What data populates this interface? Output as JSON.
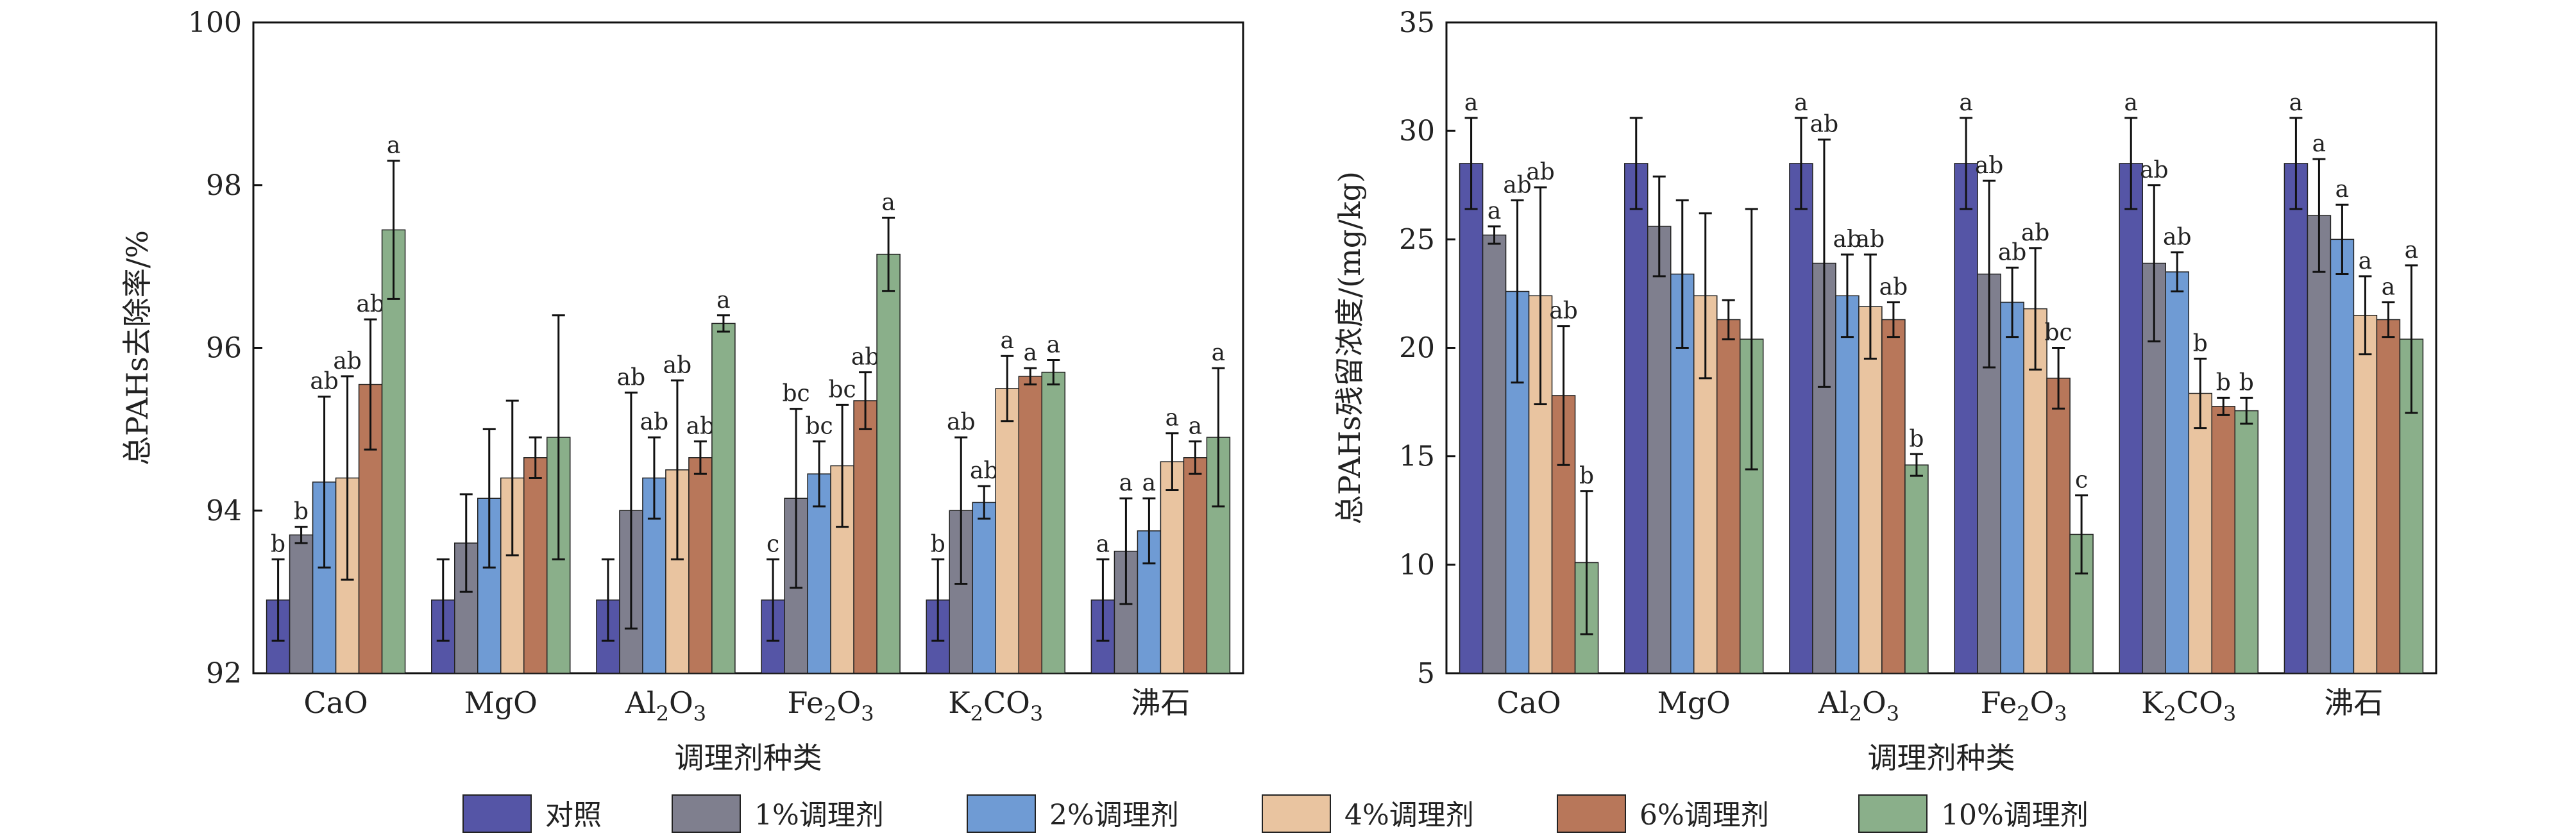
{
  "legend": {
    "series": [
      "对照",
      "1%调理剂",
      "2%调理剂",
      "4%调理剂",
      "6%调理剂",
      "10%调理剂"
    ],
    "colors": [
      "#5555a6",
      "#7f7f8e",
      "#6f9bd4",
      "#e9c4a0",
      "#b8775a",
      "#8aaf8a"
    ]
  },
  "chart_data": [
    {
      "type": "bar",
      "ylabel": "总PAHs去除率/%",
      "xlabel": "调理剂种类",
      "ylim": [
        92,
        100
      ],
      "yticks": [
        "92",
        "94",
        "96",
        "98",
        "100"
      ],
      "categories": [
        {
          "base": "CaO",
          "sub": []
        },
        {
          "base": "MgO",
          "sub": []
        },
        {
          "base": "Al",
          "sub": [
            "2",
            "O",
            "3"
          ]
        },
        {
          "base": "Fe",
          "sub": [
            "2",
            "O",
            "3"
          ]
        },
        {
          "base": "K",
          "sub": [
            "2",
            "CO",
            "3"
          ]
        },
        {
          "base": "沸石",
          "sub": []
        }
      ],
      "series": [
        {
          "name": "对照",
          "values": [
            92.9,
            92.9,
            92.9,
            92.9,
            92.9,
            92.9
          ],
          "errors": [
            0.5,
            0.5,
            0.5,
            0.5,
            0.5,
            0.5
          ],
          "letters": [
            "b",
            "",
            "",
            "c",
            "b",
            "a"
          ]
        },
        {
          "name": "1%调理剂",
          "values": [
            93.7,
            93.6,
            94.0,
            94.15,
            94.0,
            93.5
          ],
          "errors": [
            0.1,
            0.6,
            1.45,
            1.1,
            0.9,
            0.65
          ],
          "letters": [
            "b",
            "",
            "ab",
            "bc",
            "ab",
            "a"
          ]
        },
        {
          "name": "2%调理剂",
          "values": [
            94.35,
            94.15,
            94.4,
            94.45,
            94.1,
            93.75
          ],
          "errors": [
            1.05,
            0.85,
            0.5,
            0.4,
            0.2,
            0.4
          ],
          "letters": [
            "ab",
            "",
            "ab",
            "bc",
            "ab",
            "a"
          ]
        },
        {
          "name": "4%调理剂",
          "values": [
            94.4,
            94.4,
            94.5,
            94.55,
            95.5,
            94.6
          ],
          "errors": [
            1.25,
            0.95,
            1.1,
            0.75,
            0.4,
            0.35
          ],
          "letters": [
            "ab",
            "",
            "ab",
            "bc",
            "a",
            "a"
          ]
        },
        {
          "name": "6%调理剂",
          "values": [
            95.55,
            94.65,
            94.65,
            95.35,
            95.65,
            94.65
          ],
          "errors": [
            0.8,
            0.25,
            0.2,
            0.35,
            0.1,
            0.2
          ],
          "letters": [
            "ab",
            "",
            "ab",
            "ab",
            "a",
            "a"
          ]
        },
        {
          "name": "10%调理剂",
          "values": [
            97.45,
            94.9,
            96.3,
            97.15,
            95.7,
            94.9
          ],
          "errors": [
            0.85,
            1.5,
            0.1,
            0.45,
            0.15,
            0.85
          ],
          "letters": [
            "a",
            "",
            "a",
            "a",
            "a",
            "a"
          ]
        }
      ]
    },
    {
      "type": "bar",
      "ylabel": "总PAHs残留浓度/(mg/kg)",
      "xlabel": "调理剂种类",
      "ylim": [
        5,
        35
      ],
      "yticks": [
        "5",
        "10",
        "15",
        "20",
        "25",
        "30",
        "35"
      ],
      "categories": [
        {
          "base": "CaO",
          "sub": []
        },
        {
          "base": "MgO",
          "sub": []
        },
        {
          "base": "Al",
          "sub": [
            "2",
            "O",
            "3"
          ]
        },
        {
          "base": "Fe",
          "sub": [
            "2",
            "O",
            "3"
          ]
        },
        {
          "base": "K",
          "sub": [
            "2",
            "CO",
            "3"
          ]
        },
        {
          "base": "沸石",
          "sub": []
        }
      ],
      "series": [
        {
          "name": "对照",
          "values": [
            28.5,
            28.5,
            28.5,
            28.5,
            28.5,
            28.5
          ],
          "errors": [
            2.1,
            2.1,
            2.1,
            2.1,
            2.1,
            2.1
          ],
          "letters": [
            "a",
            "",
            "a",
            "a",
            "a",
            "a"
          ]
        },
        {
          "name": "1%调理剂",
          "values": [
            25.2,
            25.6,
            23.9,
            23.4,
            23.9,
            26.1
          ],
          "errors": [
            0.4,
            2.3,
            5.7,
            4.3,
            3.6,
            2.6
          ],
          "letters": [
            "a",
            "",
            "ab",
            "ab",
            "ab",
            "a"
          ]
        },
        {
          "name": "2%调理剂",
          "values": [
            22.6,
            23.4,
            22.4,
            22.1,
            23.5,
            25.0
          ],
          "errors": [
            4.2,
            3.4,
            1.9,
            1.6,
            0.9,
            1.6
          ],
          "letters": [
            "ab",
            "",
            "ab",
            "ab",
            "ab",
            "a"
          ]
        },
        {
          "name": "4%调理剂",
          "values": [
            22.4,
            22.4,
            21.9,
            21.8,
            17.9,
            21.5
          ],
          "errors": [
            5.0,
            3.8,
            2.4,
            2.8,
            1.6,
            1.8
          ],
          "letters": [
            "ab",
            "",
            "ab",
            "ab",
            "b",
            "a"
          ]
        },
        {
          "name": "6%调理剂",
          "values": [
            17.8,
            21.3,
            21.3,
            18.6,
            17.3,
            21.3
          ],
          "errors": [
            3.2,
            0.9,
            0.8,
            1.4,
            0.4,
            0.8
          ],
          "letters": [
            "ab",
            "",
            "ab",
            "bc",
            "b",
            "a"
          ]
        },
        {
          "name": "10%调理剂",
          "values": [
            10.1,
            20.4,
            14.6,
            11.4,
            17.1,
            20.4
          ],
          "errors": [
            3.3,
            6.0,
            0.5,
            1.8,
            0.6,
            3.4
          ],
          "letters": [
            "b",
            "",
            "b",
            "c",
            "b",
            "a"
          ]
        }
      ]
    }
  ]
}
